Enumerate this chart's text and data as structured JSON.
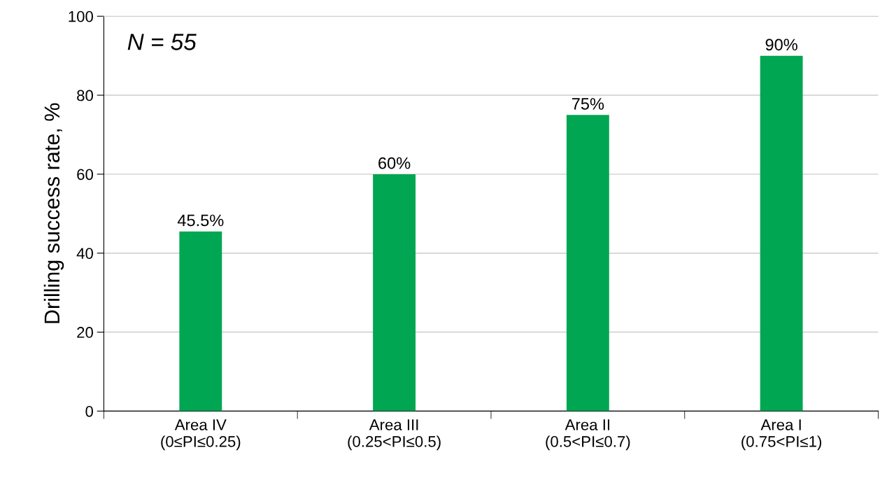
{
  "chart_data": {
    "type": "bar",
    "ylabel": "Drilling success rate, %",
    "categories": [
      "Area IV\n(0≤PI≤0.25)",
      "Area III\n(0.25<PI≤0.5)",
      "Area II\n(0.5<PI≤0.7)",
      "Area I\n(0.75<PI≤1)"
    ],
    "values": [
      45.5,
      60,
      75,
      90
    ],
    "color": "#00a651",
    "value_labels": [
      "45.5%",
      "60%",
      "75%",
      "90%"
    ],
    "ylim": [
      0,
      100
    ],
    "yticks": [
      0,
      20,
      40,
      60,
      80,
      100
    ],
    "grid": "y",
    "annotations": [
      "N = 55"
    ]
  }
}
